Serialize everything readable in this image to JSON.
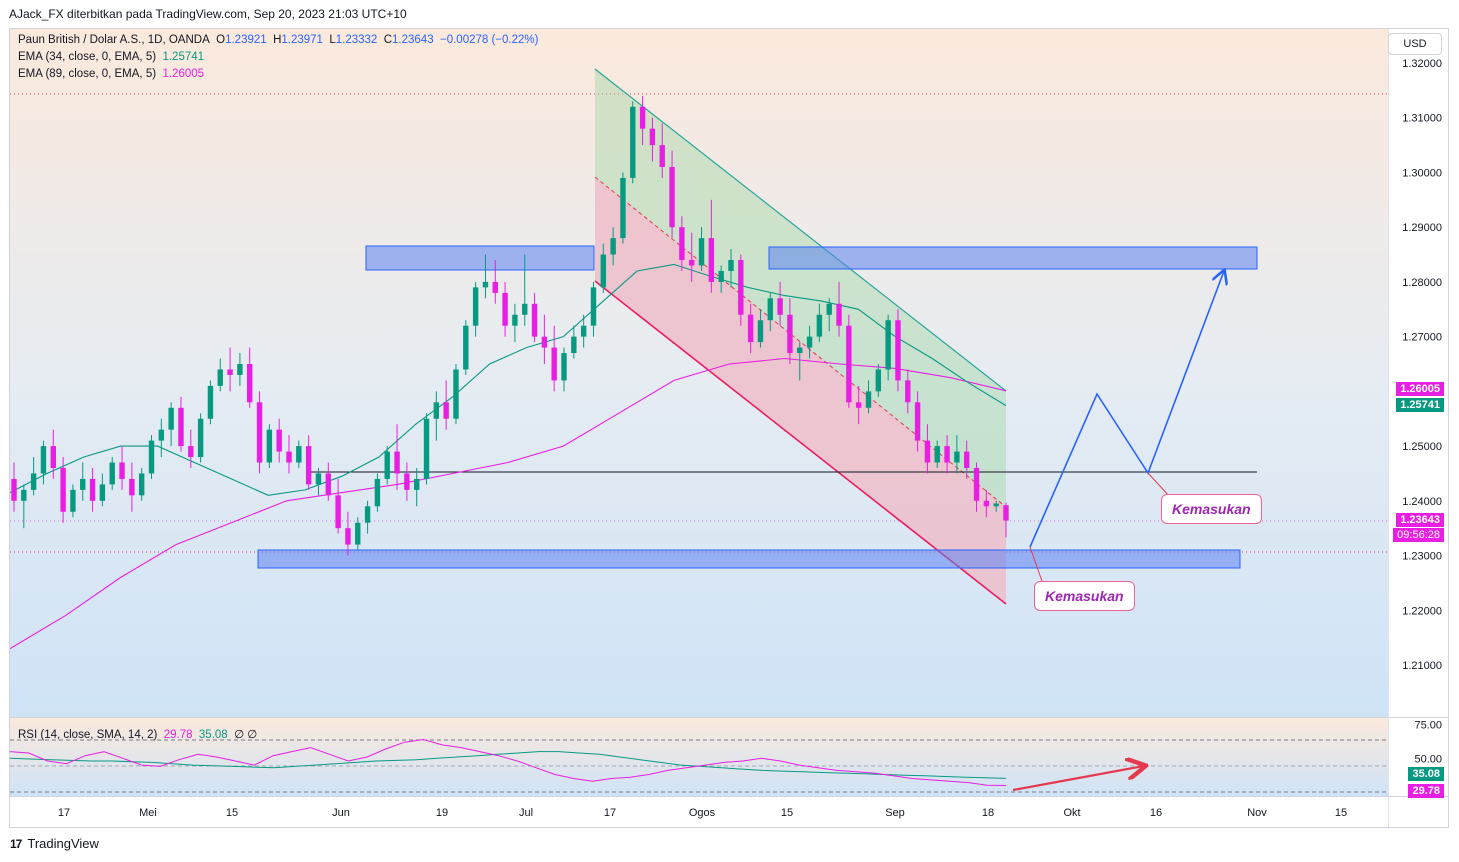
{
  "header": {
    "published_by": "AJack_FX diterbitkan pada TradingView.com, Sep 20, 2023 21:03 UTC+10"
  },
  "legend": {
    "symbol": "Paun British / Dolar A.S., 1D, OANDA",
    "o_label": "O",
    "o": "1.23921",
    "h_label": "H",
    "h": "1.23971",
    "l_label": "L",
    "l": "1.23332",
    "c_label": "C",
    "c": "1.23643",
    "change": "−0.00278 (−0.22%)",
    "ema34_label": "EMA (34, close, 0, EMA, 5)",
    "ema34_value": "1.25741",
    "ema89_label": "EMA (89, close, 0, EMA, 5)",
    "ema89_value": "1.26005",
    "rsi_label": "RSI (14, close, SMA, 14, 2)",
    "rsi_value": "29.78",
    "rsi_sma_value": "35.08",
    "rsi_extra": "∅  ∅"
  },
  "currency_button": "USD",
  "price_tags": {
    "ema89": "1.26005",
    "ema34": "1.25741",
    "last": "1.23643",
    "countdown": "09:56:28",
    "rsi_sma": "35.08",
    "rsi": "29.78"
  },
  "callouts": {
    "upper": "Kemasukan",
    "lower": "Kemasukan"
  },
  "footer": {
    "brand": "TradingView",
    "logo_text": "17"
  },
  "colors": {
    "bull": "#089981",
    "bear": "#e91ee3",
    "ema34": "#089981",
    "ema89": "#e91ee3",
    "zone": "#5b82f0",
    "channel_line": "#f06292",
    "projection": "#2962ff",
    "rsi_arrow": "#e53950"
  },
  "chart_data": {
    "type": "candlestick",
    "title": "Paun British / Dolar A.S., 1D, OANDA",
    "y_ticks": [
      "1.32000",
      "1.31000",
      "1.30000",
      "1.29000",
      "1.28000",
      "1.27000",
      "1.26000",
      "1.25000",
      "1.24000",
      "1.23000",
      "1.22000",
      "1.21000"
    ],
    "y_range": [
      1.2,
      1.3215
    ],
    "x_ticks": [
      "17",
      "Mei",
      "15",
      "Jun",
      "19",
      "Jul",
      "17",
      "Ogos",
      "15",
      "Sep",
      "18",
      "Okt",
      "16",
      "Nov",
      "15"
    ],
    "rsi_ticks": [
      "75.00",
      "50.00"
    ],
    "rsi_range": [
      22,
      80
    ],
    "ema34": [
      1.2415,
      1.245,
      1.248,
      1.25,
      1.25,
      1.247,
      1.244,
      1.241,
      1.242,
      1.2445,
      1.248,
      1.254,
      1.259,
      1.265,
      1.268,
      1.27,
      1.276,
      1.282,
      1.2832,
      1.281,
      1.279,
      1.2775,
      1.2765,
      1.275,
      1.27,
      1.266,
      1.2615,
      1.2574
    ],
    "ema89": [
      1.213,
      1.219,
      1.226,
      1.232,
      1.236,
      1.24,
      1.2415,
      1.243,
      1.245,
      1.247,
      1.25,
      1.256,
      1.262,
      1.265,
      1.266,
      1.265,
      1.2642,
      1.2625,
      1.2601
    ],
    "support_resistance": [
      1.2855,
      1.2855,
      1.229,
      1.2453
    ],
    "candles": [
      [
        1.244,
        1.247,
        1.238,
        1.24
      ],
      [
        1.24,
        1.243,
        1.235,
        1.242
      ],
      [
        1.242,
        1.248,
        1.241,
        1.245
      ],
      [
        1.245,
        1.251,
        1.243,
        1.25
      ],
      [
        1.25,
        1.253,
        1.244,
        1.246
      ],
      [
        1.246,
        1.248,
        1.236,
        1.238
      ],
      [
        1.238,
        1.243,
        1.237,
        1.242
      ],
      [
        1.242,
        1.247,
        1.24,
        1.244
      ],
      [
        1.244,
        1.246,
        1.238,
        1.24
      ],
      [
        1.24,
        1.245,
        1.239,
        1.243
      ],
      [
        1.243,
        1.248,
        1.242,
        1.247
      ],
      [
        1.247,
        1.25,
        1.242,
        1.244
      ],
      [
        1.244,
        1.247,
        1.238,
        1.241
      ],
      [
        1.241,
        1.246,
        1.24,
        1.245
      ],
      [
        1.245,
        1.252,
        1.244,
        1.251
      ],
      [
        1.251,
        1.255,
        1.248,
        1.253
      ],
      [
        1.253,
        1.258,
        1.25,
        1.257
      ],
      [
        1.257,
        1.259,
        1.249,
        1.25
      ],
      [
        1.25,
        1.253,
        1.246,
        1.248
      ],
      [
        1.248,
        1.256,
        1.247,
        1.255
      ],
      [
        1.255,
        1.262,
        1.254,
        1.261
      ],
      [
        1.261,
        1.266,
        1.26,
        1.264
      ],
      [
        1.264,
        1.268,
        1.26,
        1.263
      ],
      [
        1.263,
        1.267,
        1.261,
        1.265
      ],
      [
        1.265,
        1.268,
        1.257,
        1.258
      ],
      [
        1.258,
        1.26,
        1.245,
        1.247
      ],
      [
        1.247,
        1.254,
        1.246,
        1.253
      ],
      [
        1.253,
        1.255,
        1.247,
        1.249
      ],
      [
        1.249,
        1.252,
        1.245,
        1.247
      ],
      [
        1.247,
        1.251,
        1.246,
        1.25
      ],
      [
        1.25,
        1.252,
        1.242,
        1.243
      ],
      [
        1.243,
        1.246,
        1.241,
        1.245
      ],
      [
        1.245,
        1.247,
        1.24,
        1.241
      ],
      [
        1.241,
        1.244,
        1.234,
        1.235
      ],
      [
        1.235,
        1.238,
        1.23,
        1.232
      ],
      [
        1.232,
        1.237,
        1.231,
        1.236
      ],
      [
        1.236,
        1.24,
        1.234,
        1.239
      ],
      [
        1.239,
        1.245,
        1.238,
        1.244
      ],
      [
        1.244,
        1.25,
        1.243,
        1.249
      ],
      [
        1.249,
        1.254,
        1.242,
        1.245
      ],
      [
        1.245,
        1.247,
        1.24,
        1.242
      ],
      [
        1.242,
        1.246,
        1.239,
        1.244
      ],
      [
        1.244,
        1.256,
        1.243,
        1.255
      ],
      [
        1.255,
        1.26,
        1.251,
        1.258
      ],
      [
        1.258,
        1.262,
        1.253,
        1.255
      ],
      [
        1.255,
        1.265,
        1.254,
        1.264
      ],
      [
        1.264,
        1.273,
        1.263,
        1.272
      ],
      [
        1.272,
        1.28,
        1.27,
        1.279
      ],
      [
        1.279,
        1.285,
        1.277,
        1.28
      ],
      [
        1.28,
        1.284,
        1.276,
        1.278
      ],
      [
        1.278,
        1.28,
        1.27,
        1.272
      ],
      [
        1.272,
        1.276,
        1.269,
        1.274
      ],
      [
        1.274,
        1.285,
        1.272,
        1.276
      ],
      [
        1.276,
        1.278,
        1.269,
        1.27
      ],
      [
        1.27,
        1.274,
        1.265,
        1.268
      ],
      [
        1.268,
        1.272,
        1.26,
        1.262
      ],
      [
        1.262,
        1.268,
        1.26,
        1.267
      ],
      [
        1.267,
        1.272,
        1.266,
        1.27
      ],
      [
        1.27,
        1.274,
        1.268,
        1.272
      ],
      [
        1.272,
        1.28,
        1.27,
        1.279
      ],
      [
        1.279,
        1.287,
        1.278,
        1.285
      ],
      [
        1.285,
        1.29,
        1.283,
        1.288
      ],
      [
        1.288,
        1.3,
        1.287,
        1.299
      ],
      [
        1.299,
        1.313,
        1.298,
        1.312
      ],
      [
        1.312,
        1.314,
        1.305,
        1.308
      ],
      [
        1.308,
        1.31,
        1.302,
        1.305
      ],
      [
        1.305,
        1.309,
        1.299,
        1.301
      ],
      [
        1.301,
        1.304,
        1.288,
        1.29
      ],
      [
        1.29,
        1.292,
        1.282,
        1.284
      ],
      [
        1.284,
        1.289,
        1.28,
        1.283
      ],
      [
        1.283,
        1.29,
        1.282,
        1.288
      ],
      [
        1.288,
        1.295,
        1.278,
        1.28
      ],
      [
        1.28,
        1.283,
        1.278,
        1.282
      ],
      [
        1.282,
        1.286,
        1.279,
        1.284
      ],
      [
        1.284,
        1.285,
        1.272,
        1.274
      ],
      [
        1.274,
        1.276,
        1.267,
        1.269
      ],
      [
        1.269,
        1.275,
        1.268,
        1.273
      ],
      [
        1.273,
        1.278,
        1.271,
        1.277
      ],
      [
        1.277,
        1.28,
        1.272,
        1.274
      ],
      [
        1.274,
        1.277,
        1.265,
        1.267
      ],
      [
        1.267,
        1.269,
        1.262,
        1.268
      ],
      [
        1.268,
        1.272,
        1.266,
        1.27
      ],
      [
        1.27,
        1.276,
        1.269,
        1.274
      ],
      [
        1.274,
        1.277,
        1.271,
        1.276
      ],
      [
        1.276,
        1.28,
        1.27,
        1.272
      ],
      [
        1.272,
        1.274,
        1.257,
        1.258
      ],
      [
        1.258,
        1.261,
        1.254,
        1.257
      ],
      [
        1.257,
        1.262,
        1.256,
        1.26
      ],
      [
        1.26,
        1.265,
        1.259,
        1.264
      ],
      [
        1.264,
        1.274,
        1.262,
        1.273
      ],
      [
        1.273,
        1.275,
        1.26,
        1.262
      ],
      [
        1.262,
        1.264,
        1.256,
        1.258
      ],
      [
        1.258,
        1.26,
        1.249,
        1.251
      ],
      [
        1.251,
        1.254,
        1.245,
        1.247
      ],
      [
        1.247,
        1.251,
        1.246,
        1.25
      ],
      [
        1.25,
        1.252,
        1.245,
        1.247
      ],
      [
        1.247,
        1.252,
        1.245,
        1.249
      ],
      [
        1.249,
        1.251,
        1.244,
        1.246
      ],
      [
        1.246,
        1.247,
        1.238,
        1.24
      ],
      [
        1.24,
        1.242,
        1.237,
        1.239
      ],
      [
        1.239,
        1.24,
        1.238,
        1.2395
      ],
      [
        1.2392,
        1.2397,
        1.2333,
        1.2364
      ]
    ],
    "rsi": [
      55,
      54,
      48,
      46,
      52,
      55,
      50,
      45,
      44,
      49,
      53,
      51,
      48,
      45,
      52,
      55,
      58,
      53,
      48,
      51,
      57,
      62,
      64,
      60,
      58,
      55,
      52,
      48,
      43,
      38,
      35,
      33,
      35,
      36,
      38,
      41,
      43,
      45,
      47,
      48,
      50,
      48,
      45,
      43,
      41,
      40,
      39,
      37,
      35,
      34,
      33,
      32,
      30,
      29.78
    ],
    "rsi_sma": [
      50,
      49.5,
      49,
      48.5,
      48,
      48,
      47.5,
      47,
      46,
      45,
      44.5,
      44,
      43.5,
      43,
      44,
      45,
      46,
      47,
      48,
      48.5,
      49,
      50,
      51,
      52,
      53,
      54,
      55,
      55,
      54,
      53,
      51,
      49,
      47,
      45,
      44,
      43,
      42,
      41,
      40.5,
      40,
      39.5,
      39,
      38.5,
      38,
      37.5,
      37,
      36.5,
      36,
      35.5,
      35.08
    ]
  }
}
